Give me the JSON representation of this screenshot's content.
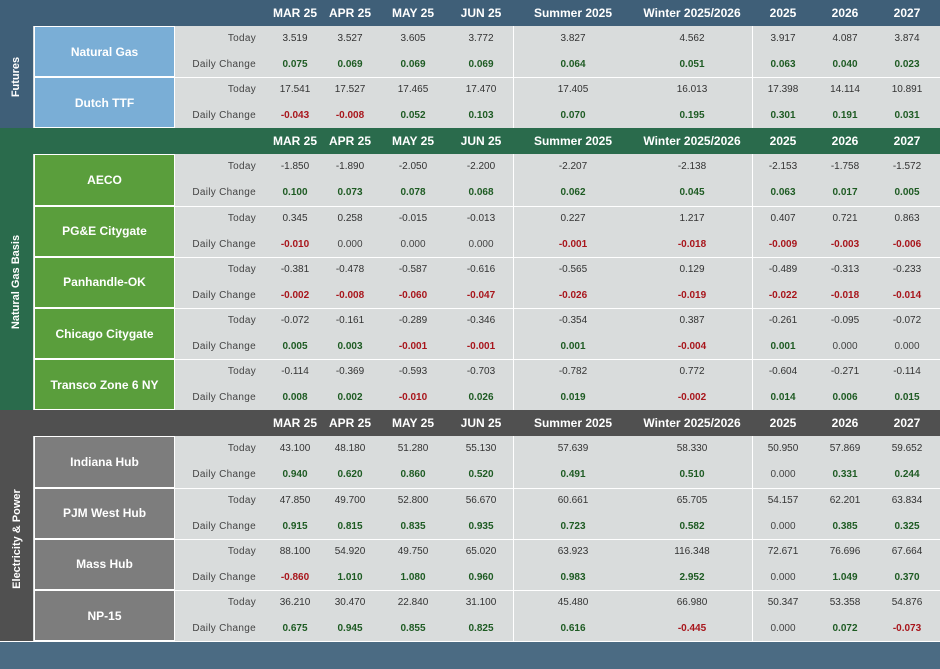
{
  "sections": [
    {
      "label": "Futures",
      "columns": [
        "MAR 25",
        "APR 25",
        "MAY 25",
        "JUN 25",
        "Summer 2025",
        "Winter 2025/2026",
        "2025",
        "2026",
        "2027"
      ],
      "rows": [
        {
          "name": "Natural Gas",
          "metrics": [
            {
              "label": "Today",
              "values": [
                "3.519",
                "3.527",
                "3.605",
                "3.772",
                "3.827",
                "4.562",
                "3.917",
                "4.087",
                "3.874"
              ]
            },
            {
              "label": "Daily Change",
              "values": [
                "0.075",
                "0.069",
                "0.069",
                "0.069",
                "0.064",
                "0.051",
                "0.063",
                "0.040",
                "0.023"
              ]
            }
          ]
        },
        {
          "name": "Dutch TTF",
          "metrics": [
            {
              "label": "Today",
              "values": [
                "17.541",
                "17.527",
                "17.465",
                "17.470",
                "17.405",
                "16.013",
                "17.398",
                "14.114",
                "10.891"
              ]
            },
            {
              "label": "Daily Change",
              "values": [
                "-0.043",
                "-0.008",
                "0.052",
                "0.103",
                "0.070",
                "0.195",
                "0.301",
                "0.191",
                "0.031"
              ]
            }
          ]
        }
      ]
    },
    {
      "label": "Natural Gas Basis",
      "columns": [
        "MAR 25",
        "APR 25",
        "MAY 25",
        "JUN 25",
        "Summer 2025",
        "Winter 2025/2026",
        "2025",
        "2026",
        "2027"
      ],
      "rows": [
        {
          "name": "AECO",
          "metrics": [
            {
              "label": "Today",
              "values": [
                "-1.850",
                "-1.890",
                "-2.050",
                "-2.200",
                "-2.207",
                "-2.138",
                "-2.153",
                "-1.758",
                "-1.572"
              ]
            },
            {
              "label": "Daily Change",
              "values": [
                "0.100",
                "0.073",
                "0.078",
                "0.068",
                "0.062",
                "0.045",
                "0.063",
                "0.017",
                "0.005"
              ]
            }
          ]
        },
        {
          "name": "PG&E Citygate",
          "metrics": [
            {
              "label": "Today",
              "values": [
                "0.345",
                "0.258",
                "-0.015",
                "-0.013",
                "0.227",
                "1.217",
                "0.407",
                "0.721",
                "0.863"
              ]
            },
            {
              "label": "Daily Change",
              "values": [
                "-0.010",
                "0.000",
                "0.000",
                "0.000",
                "-0.001",
                "-0.018",
                "-0.009",
                "-0.003",
                "-0.006"
              ]
            }
          ]
        },
        {
          "name": "Panhandle-OK",
          "metrics": [
            {
              "label": "Today",
              "values": [
                "-0.381",
                "-0.478",
                "-0.587",
                "-0.616",
                "-0.565",
                "0.129",
                "-0.489",
                "-0.313",
                "-0.233"
              ]
            },
            {
              "label": "Daily Change",
              "values": [
                "-0.002",
                "-0.008",
                "-0.060",
                "-0.047",
                "-0.026",
                "-0.019",
                "-0.022",
                "-0.018",
                "-0.014"
              ]
            }
          ]
        },
        {
          "name": "Chicago Citygate",
          "metrics": [
            {
              "label": "Today",
              "values": [
                "-0.072",
                "-0.161",
                "-0.289",
                "-0.346",
                "-0.354",
                "0.387",
                "-0.261",
                "-0.095",
                "-0.072"
              ]
            },
            {
              "label": "Daily Change",
              "values": [
                "0.005",
                "0.003",
                "-0.001",
                "-0.001",
                "0.001",
                "-0.004",
                "0.001",
                "0.000",
                "0.000"
              ]
            }
          ]
        },
        {
          "name": "Transco Zone 6 NY",
          "metrics": [
            {
              "label": "Today",
              "values": [
                "-0.114",
                "-0.369",
                "-0.593",
                "-0.703",
                "-0.782",
                "0.772",
                "-0.604",
                "-0.271",
                "-0.114"
              ]
            },
            {
              "label": "Daily Change",
              "values": [
                "0.008",
                "0.002",
                "-0.010",
                "0.026",
                "0.019",
                "-0.002",
                "0.014",
                "0.006",
                "0.015"
              ]
            }
          ]
        }
      ]
    },
    {
      "label": "Electricity & Power",
      "columns": [
        "MAR 25",
        "APR 25",
        "MAY 25",
        "JUN 25",
        "Summer 2025",
        "Winter 2025/2026",
        "2025",
        "2026",
        "2027"
      ],
      "rows": [
        {
          "name": "Indiana Hub",
          "metrics": [
            {
              "label": "Today",
              "values": [
                "43.100",
                "48.180",
                "51.280",
                "55.130",
                "57.639",
                "58.330",
                "50.950",
                "57.869",
                "59.652"
              ]
            },
            {
              "label": "Daily Change",
              "values": [
                "0.940",
                "0.620",
                "0.860",
                "0.520",
                "0.491",
                "0.510",
                "0.000",
                "0.331",
                "0.244"
              ]
            }
          ]
        },
        {
          "name": "PJM West Hub",
          "metrics": [
            {
              "label": "Today",
              "values": [
                "47.850",
                "49.700",
                "52.800",
                "56.670",
                "60.661",
                "65.705",
                "54.157",
                "62.201",
                "63.834"
              ]
            },
            {
              "label": "Daily Change",
              "values": [
                "0.915",
                "0.815",
                "0.835",
                "0.935",
                "0.723",
                "0.582",
                "0.000",
                "0.385",
                "0.325"
              ]
            }
          ]
        },
        {
          "name": "Mass Hub",
          "metrics": [
            {
              "label": "Today",
              "values": [
                "88.100",
                "54.920",
                "49.750",
                "65.020",
                "63.923",
                "116.348",
                "72.671",
                "76.696",
                "67.664"
              ]
            },
            {
              "label": "Daily Change",
              "values": [
                "-0.860",
                "1.010",
                "1.080",
                "0.960",
                "0.983",
                "2.952",
                "0.000",
                "1.049",
                "0.370"
              ]
            }
          ]
        },
        {
          "name": "NP-15",
          "metrics": [
            {
              "label": "Today",
              "values": [
                "36.210",
                "30.470",
                "22.840",
                "31.100",
                "45.480",
                "66.980",
                "50.347",
                "53.358",
                "54.876"
              ]
            },
            {
              "label": "Daily Change",
              "values": [
                "0.675",
                "0.945",
                "0.855",
                "0.825",
                "0.616",
                "-0.445",
                "0.000",
                "0.072",
                "-0.073"
              ]
            }
          ]
        }
      ]
    }
  ]
}
